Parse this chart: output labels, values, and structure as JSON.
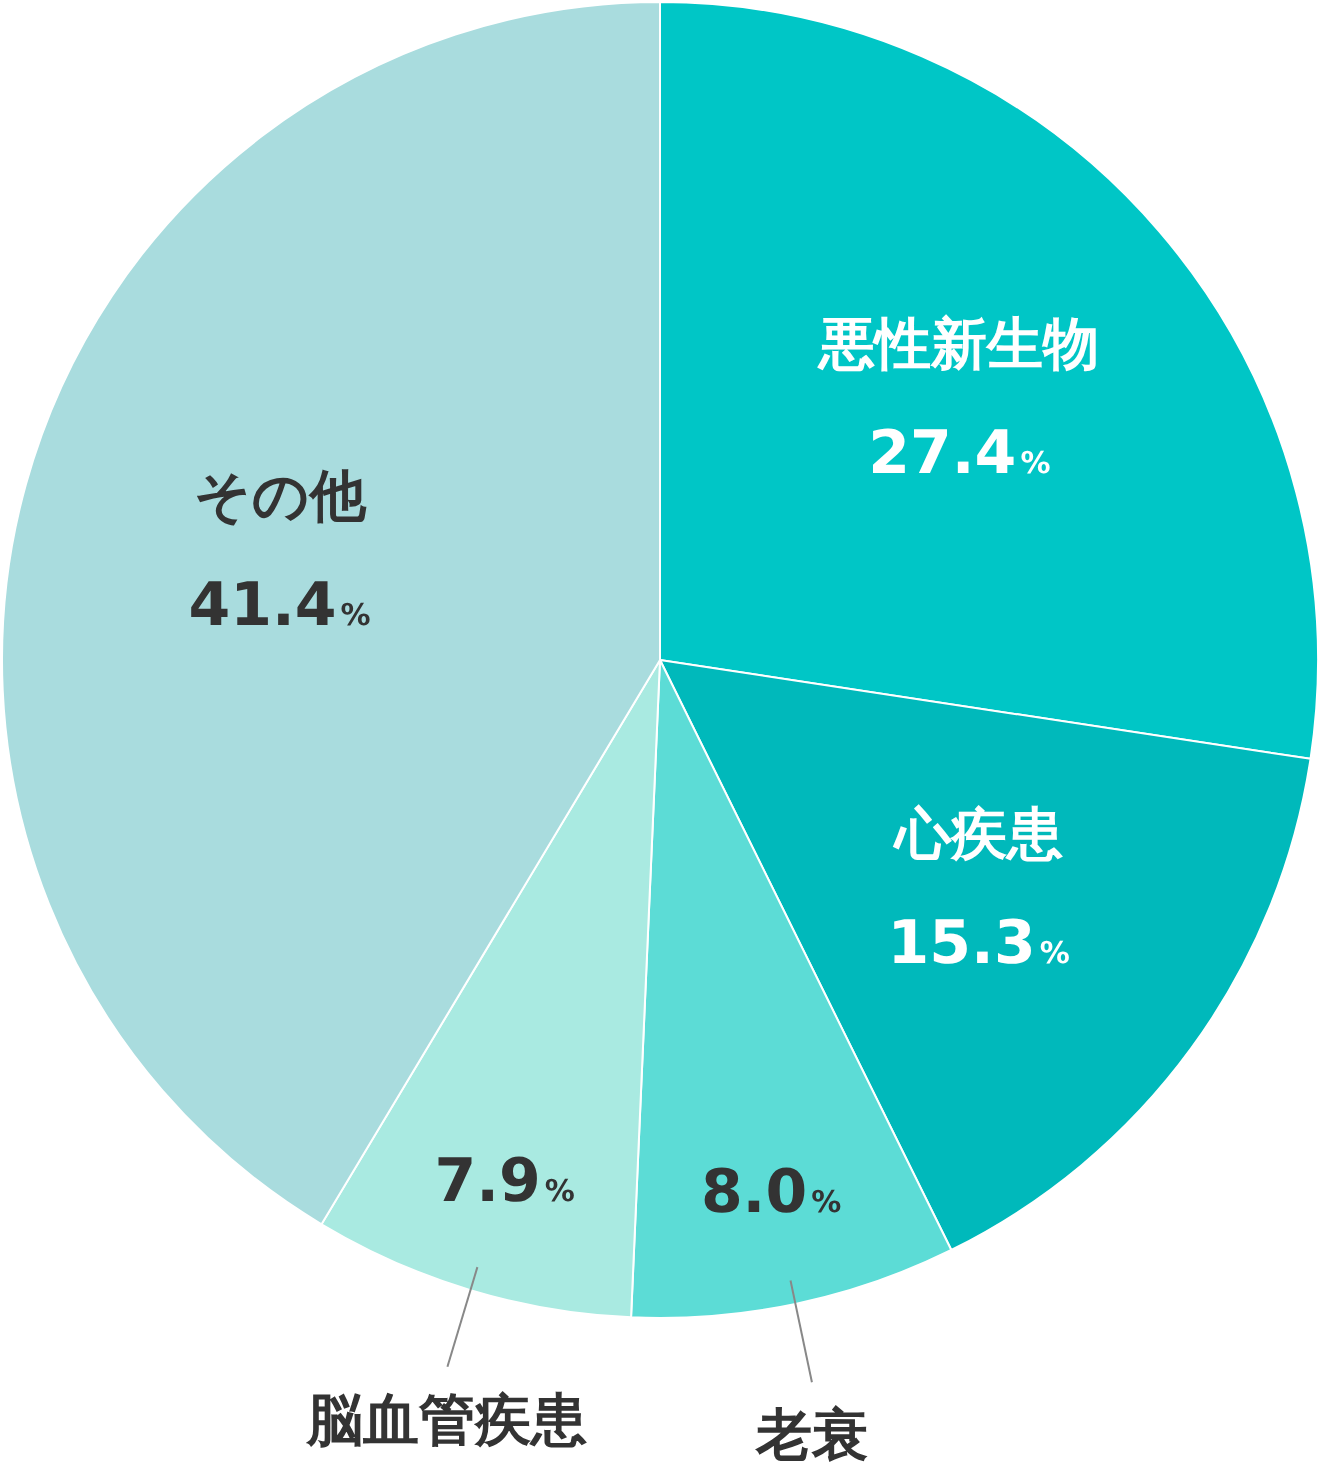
{
  "chart_data": {
    "type": "pie",
    "categories": [
      "悪性新生物",
      "心疾患",
      "老衰",
      "脳血管疾患",
      "その他"
    ],
    "values": [
      27.4,
      15.3,
      8.0,
      7.9,
      41.4
    ],
    "colors": [
      "#00c6c6",
      "#00b9bb",
      "#5cdcd6",
      "#a9eae1",
      "#a9dcde"
    ],
    "value_labels": [
      "27.4%",
      "15.3%",
      "8.0%",
      "7.9%",
      "41.4%"
    ]
  }
}
